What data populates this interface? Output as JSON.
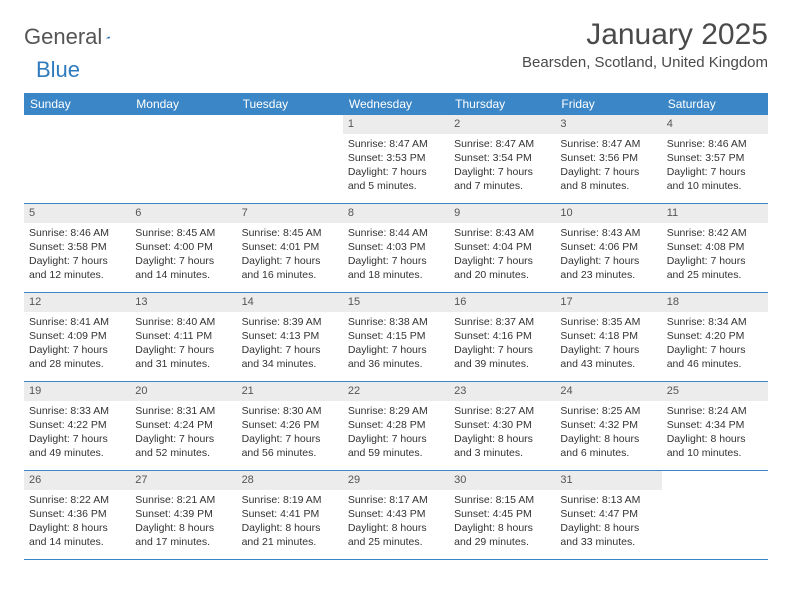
{
  "logo": {
    "word1": "General",
    "word2": "Blue"
  },
  "title": "January 2025",
  "location": "Bearsden, Scotland, United Kingdom",
  "colors": {
    "header_bg": "#3b86c6",
    "header_text": "#ffffff",
    "daynum_bg": "#ececec",
    "border": "#3b86c6",
    "title_color": "#4a4a4a"
  },
  "dayNames": [
    "Sunday",
    "Monday",
    "Tuesday",
    "Wednesday",
    "Thursday",
    "Friday",
    "Saturday"
  ],
  "weeks": [
    [
      null,
      null,
      null,
      {
        "n": "1",
        "sunrise": "Sunrise: 8:47 AM",
        "sunset": "Sunset: 3:53 PM",
        "daylight": "Daylight: 7 hours and 5 minutes."
      },
      {
        "n": "2",
        "sunrise": "Sunrise: 8:47 AM",
        "sunset": "Sunset: 3:54 PM",
        "daylight": "Daylight: 7 hours and 7 minutes."
      },
      {
        "n": "3",
        "sunrise": "Sunrise: 8:47 AM",
        "sunset": "Sunset: 3:56 PM",
        "daylight": "Daylight: 7 hours and 8 minutes."
      },
      {
        "n": "4",
        "sunrise": "Sunrise: 8:46 AM",
        "sunset": "Sunset: 3:57 PM",
        "daylight": "Daylight: 7 hours and 10 minutes."
      }
    ],
    [
      {
        "n": "5",
        "sunrise": "Sunrise: 8:46 AM",
        "sunset": "Sunset: 3:58 PM",
        "daylight": "Daylight: 7 hours and 12 minutes."
      },
      {
        "n": "6",
        "sunrise": "Sunrise: 8:45 AM",
        "sunset": "Sunset: 4:00 PM",
        "daylight": "Daylight: 7 hours and 14 minutes."
      },
      {
        "n": "7",
        "sunrise": "Sunrise: 8:45 AM",
        "sunset": "Sunset: 4:01 PM",
        "daylight": "Daylight: 7 hours and 16 minutes."
      },
      {
        "n": "8",
        "sunrise": "Sunrise: 8:44 AM",
        "sunset": "Sunset: 4:03 PM",
        "daylight": "Daylight: 7 hours and 18 minutes."
      },
      {
        "n": "9",
        "sunrise": "Sunrise: 8:43 AM",
        "sunset": "Sunset: 4:04 PM",
        "daylight": "Daylight: 7 hours and 20 minutes."
      },
      {
        "n": "10",
        "sunrise": "Sunrise: 8:43 AM",
        "sunset": "Sunset: 4:06 PM",
        "daylight": "Daylight: 7 hours and 23 minutes."
      },
      {
        "n": "11",
        "sunrise": "Sunrise: 8:42 AM",
        "sunset": "Sunset: 4:08 PM",
        "daylight": "Daylight: 7 hours and 25 minutes."
      }
    ],
    [
      {
        "n": "12",
        "sunrise": "Sunrise: 8:41 AM",
        "sunset": "Sunset: 4:09 PM",
        "daylight": "Daylight: 7 hours and 28 minutes."
      },
      {
        "n": "13",
        "sunrise": "Sunrise: 8:40 AM",
        "sunset": "Sunset: 4:11 PM",
        "daylight": "Daylight: 7 hours and 31 minutes."
      },
      {
        "n": "14",
        "sunrise": "Sunrise: 8:39 AM",
        "sunset": "Sunset: 4:13 PM",
        "daylight": "Daylight: 7 hours and 34 minutes."
      },
      {
        "n": "15",
        "sunrise": "Sunrise: 8:38 AM",
        "sunset": "Sunset: 4:15 PM",
        "daylight": "Daylight: 7 hours and 36 minutes."
      },
      {
        "n": "16",
        "sunrise": "Sunrise: 8:37 AM",
        "sunset": "Sunset: 4:16 PM",
        "daylight": "Daylight: 7 hours and 39 minutes."
      },
      {
        "n": "17",
        "sunrise": "Sunrise: 8:35 AM",
        "sunset": "Sunset: 4:18 PM",
        "daylight": "Daylight: 7 hours and 43 minutes."
      },
      {
        "n": "18",
        "sunrise": "Sunrise: 8:34 AM",
        "sunset": "Sunset: 4:20 PM",
        "daylight": "Daylight: 7 hours and 46 minutes."
      }
    ],
    [
      {
        "n": "19",
        "sunrise": "Sunrise: 8:33 AM",
        "sunset": "Sunset: 4:22 PM",
        "daylight": "Daylight: 7 hours and 49 minutes."
      },
      {
        "n": "20",
        "sunrise": "Sunrise: 8:31 AM",
        "sunset": "Sunset: 4:24 PM",
        "daylight": "Daylight: 7 hours and 52 minutes."
      },
      {
        "n": "21",
        "sunrise": "Sunrise: 8:30 AM",
        "sunset": "Sunset: 4:26 PM",
        "daylight": "Daylight: 7 hours and 56 minutes."
      },
      {
        "n": "22",
        "sunrise": "Sunrise: 8:29 AM",
        "sunset": "Sunset: 4:28 PM",
        "daylight": "Daylight: 7 hours and 59 minutes."
      },
      {
        "n": "23",
        "sunrise": "Sunrise: 8:27 AM",
        "sunset": "Sunset: 4:30 PM",
        "daylight": "Daylight: 8 hours and 3 minutes."
      },
      {
        "n": "24",
        "sunrise": "Sunrise: 8:25 AM",
        "sunset": "Sunset: 4:32 PM",
        "daylight": "Daylight: 8 hours and 6 minutes."
      },
      {
        "n": "25",
        "sunrise": "Sunrise: 8:24 AM",
        "sunset": "Sunset: 4:34 PM",
        "daylight": "Daylight: 8 hours and 10 minutes."
      }
    ],
    [
      {
        "n": "26",
        "sunrise": "Sunrise: 8:22 AM",
        "sunset": "Sunset: 4:36 PM",
        "daylight": "Daylight: 8 hours and 14 minutes."
      },
      {
        "n": "27",
        "sunrise": "Sunrise: 8:21 AM",
        "sunset": "Sunset: 4:39 PM",
        "daylight": "Daylight: 8 hours and 17 minutes."
      },
      {
        "n": "28",
        "sunrise": "Sunrise: 8:19 AM",
        "sunset": "Sunset: 4:41 PM",
        "daylight": "Daylight: 8 hours and 21 minutes."
      },
      {
        "n": "29",
        "sunrise": "Sunrise: 8:17 AM",
        "sunset": "Sunset: 4:43 PM",
        "daylight": "Daylight: 8 hours and 25 minutes."
      },
      {
        "n": "30",
        "sunrise": "Sunrise: 8:15 AM",
        "sunset": "Sunset: 4:45 PM",
        "daylight": "Daylight: 8 hours and 29 minutes."
      },
      {
        "n": "31",
        "sunrise": "Sunrise: 8:13 AM",
        "sunset": "Sunset: 4:47 PM",
        "daylight": "Daylight: 8 hours and 33 minutes."
      },
      null
    ]
  ]
}
